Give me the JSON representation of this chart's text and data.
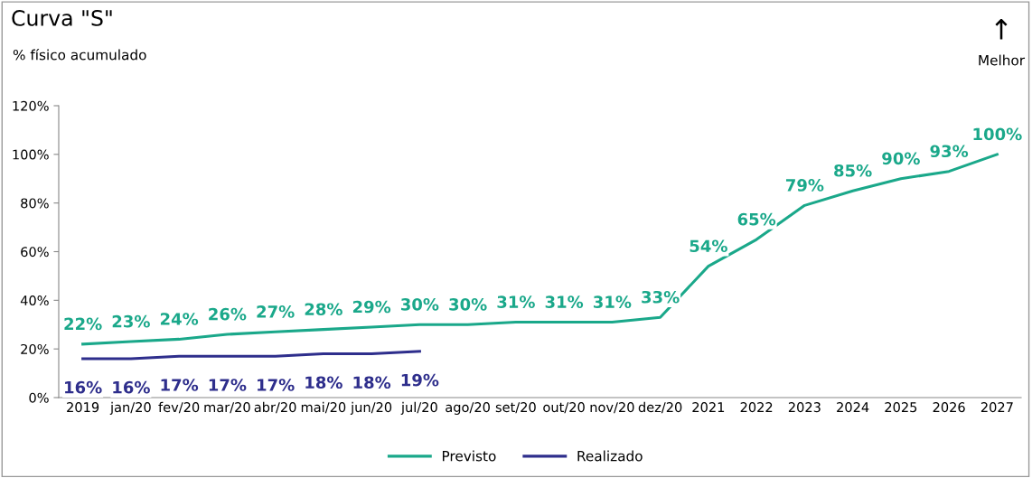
{
  "chart_data": {
    "type": "line",
    "title": "Curva \"S\"",
    "subtitle": "% físico acumulado",
    "annotations": [
      "↑",
      "Melhor"
    ],
    "categories": [
      "2019",
      "jan/20",
      "fev/20",
      "mar/20",
      "abr/20",
      "mai/20",
      "jun/20",
      "jul/20",
      "ago/20",
      "set/20",
      "out/20",
      "nov/20",
      "dez/20",
      "2021",
      "2022",
      "2023",
      "2024",
      "2025",
      "2026",
      "2027"
    ],
    "series": [
      {
        "name": "Previsto",
        "color": "#1aa88a",
        "values": [
          22,
          23,
          24,
          26,
          27,
          28,
          29,
          30,
          30,
          31,
          31,
          31,
          33,
          54,
          65,
          79,
          85,
          90,
          93,
          100
        ],
        "value_labels": [
          "22%",
          "23%",
          "24%",
          "26%",
          "27%",
          "28%",
          "29%",
          "30%",
          "30%",
          "31%",
          "31%",
          "31%",
          "33%",
          "54%",
          "65%",
          "79%",
          "85%",
          "90%",
          "93%",
          "100%"
        ]
      },
      {
        "name": "Realizado",
        "color": "#2e2e8c",
        "values": [
          16,
          16,
          17,
          17,
          17,
          18,
          18,
          19,
          null,
          null,
          null,
          null,
          null,
          null,
          null,
          null,
          null,
          null,
          null,
          null
        ],
        "value_labels": [
          "16%",
          "16%",
          "17%",
          "17%",
          "17%",
          "18%",
          "18%",
          "19%",
          null,
          null,
          null,
          null,
          null,
          null,
          null,
          null,
          null,
          null,
          null,
          null
        ]
      }
    ],
    "ylim": [
      0,
      120
    ],
    "yticks": [
      {
        "value": 0,
        "label": "0%"
      },
      {
        "value": 20,
        "label": "20%"
      },
      {
        "value": 40,
        "label": "40%"
      },
      {
        "value": 60,
        "label": "60%"
      },
      {
        "value": 80,
        "label": "80%"
      },
      {
        "value": 100,
        "label": "100%"
      },
      {
        "value": 120,
        "label": "120%"
      }
    ],
    "grid": false,
    "legend": "bottom",
    "marker": "none",
    "line_style": "solid"
  }
}
